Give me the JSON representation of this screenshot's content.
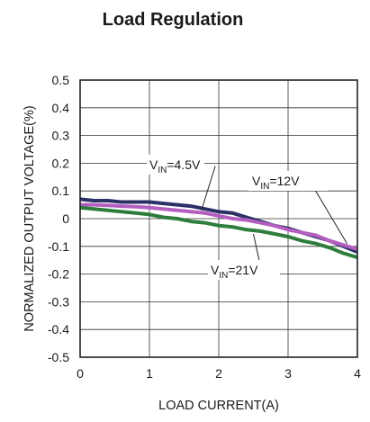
{
  "chart_data": {
    "type": "line",
    "title": "Load Regulation",
    "xlabel": "LOAD CURRENT(A)",
    "ylabel": "NORMALIZED OUTPUT VOLTAGE(%)",
    "xlim": [
      0,
      4
    ],
    "ylim": [
      -0.5,
      0.5
    ],
    "xticks": [
      "0",
      "1",
      "2",
      "3",
      "4"
    ],
    "yticks": [
      "0.5",
      "0.4",
      "0.3",
      "0.2",
      "0.1",
      "0",
      "-0.1",
      "-0.2",
      "-0.3",
      "-0.4",
      "-0.5"
    ],
    "grid": true,
    "series": [
      {
        "color": "#2b3066",
        "x": [
          0,
          0.2,
          0.4,
          0.6,
          0.8,
          1.0,
          1.2,
          1.4,
          1.6,
          1.8,
          2.0,
          2.2,
          2.4,
          2.6,
          2.8,
          3.0,
          3.2,
          3.4,
          3.6,
          3.8,
          4.0
        ],
        "y": [
          0.07,
          0.065,
          0.065,
          0.06,
          0.06,
          0.06,
          0.055,
          0.05,
          0.045,
          0.035,
          0.025,
          0.02,
          0.005,
          -0.01,
          -0.025,
          -0.035,
          -0.05,
          -0.065,
          -0.08,
          -0.1,
          -0.12
        ]
      },
      {
        "color": "#b45fc0",
        "x": [
          0,
          0.2,
          0.4,
          0.6,
          0.8,
          1.0,
          1.2,
          1.4,
          1.6,
          1.8,
          2.0,
          2.2,
          2.4,
          2.6,
          2.8,
          3.0,
          3.2,
          3.4,
          3.6,
          3.8,
          4.0
        ],
        "y": [
          0.05,
          0.05,
          0.048,
          0.045,
          0.043,
          0.04,
          0.035,
          0.03,
          0.025,
          0.02,
          0.01,
          0.0,
          -0.005,
          -0.015,
          -0.025,
          -0.04,
          -0.05,
          -0.06,
          -0.08,
          -0.095,
          -0.11
        ]
      },
      {
        "color": "#2e7d3c",
        "x": [
          0,
          0.2,
          0.4,
          0.6,
          0.8,
          1.0,
          1.2,
          1.4,
          1.6,
          1.8,
          2.0,
          2.2,
          2.4,
          2.6,
          2.8,
          3.0,
          3.2,
          3.4,
          3.6,
          3.8,
          4.0
        ],
        "y": [
          0.04,
          0.035,
          0.03,
          0.025,
          0.02,
          0.015,
          0.005,
          0.0,
          -0.01,
          -0.015,
          -0.025,
          -0.03,
          -0.04,
          -0.045,
          -0.055,
          -0.065,
          -0.08,
          -0.09,
          -0.105,
          -0.125,
          -0.14
        ]
      }
    ],
    "annotations": [
      {
        "base": "V",
        "sub": "IN",
        "text": "=4.5V"
      },
      {
        "base": "V",
        "sub": "IN",
        "text": "=12V"
      },
      {
        "base": "V",
        "sub": "IN",
        "text": "=21V"
      }
    ]
  }
}
